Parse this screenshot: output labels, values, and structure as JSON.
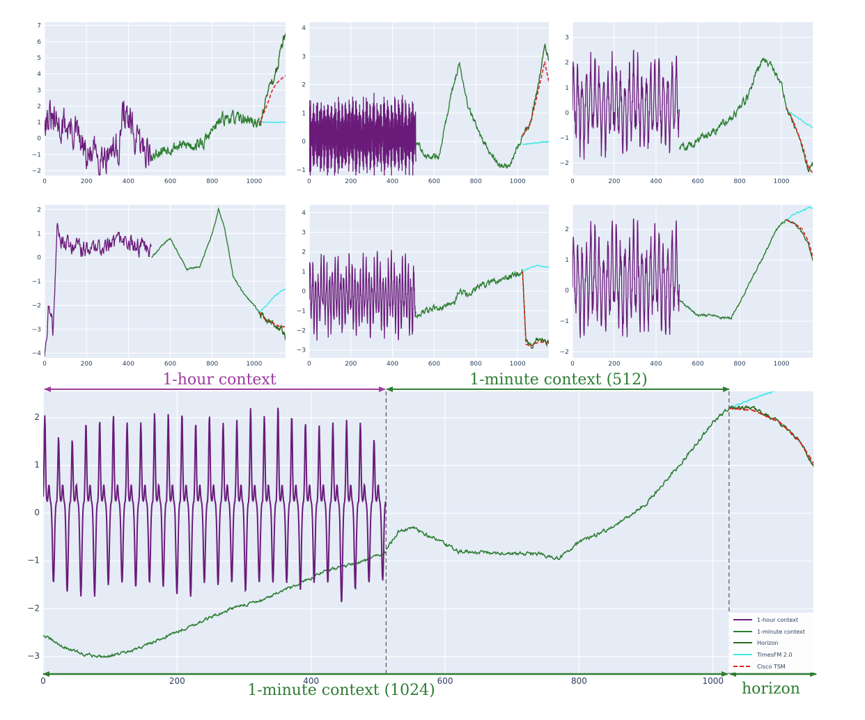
{
  "chart_data": {
    "type": "line",
    "series_styles": {
      "hour_context": {
        "name": "1-hour context",
        "color": "#6a1b7a"
      },
      "minute_context": {
        "name": "1-minute context",
        "color": "#2e7d32"
      },
      "horizon": {
        "name": "Horizon",
        "color": "#2d6a1f"
      },
      "timesfm": {
        "name": "TimesFM 2.0",
        "color": "#3ee8e8"
      },
      "cisco": {
        "name": "Cisco TSM",
        "color": "#e0201b"
      }
    },
    "legend": {
      "position": "bottom-right",
      "entries": [
        "1-hour context",
        "1-minute context",
        "Horizon",
        "TimesFM 2.0",
        "Cisco TSM"
      ]
    },
    "annotations": {
      "hour_context": "1-hour context",
      "minute_context_512": "1-minute context (512)",
      "minute_context_1024": "1-minute context (1024)",
      "horizon": "horizon"
    },
    "small_panels": [
      {
        "xlim": [
          0,
          1150
        ],
        "ylim": [
          -2.3,
          7.2
        ],
        "xticks": [
          0,
          200,
          400,
          600,
          800,
          1000
        ],
        "yticks": [
          -2,
          -1,
          0,
          1,
          2,
          3,
          4,
          5,
          6,
          7
        ],
        "hour": {
          "x_end": 512,
          "amp": 0.9,
          "cycles": 0,
          "kx": [
            0,
            50,
            100,
            150,
            200,
            250,
            300,
            350,
            380,
            410,
            450,
            512
          ],
          "ky": [
            1.6,
            0.7,
            0.8,
            0.3,
            -1.3,
            -0.9,
            -0.8,
            -0.6,
            1.8,
            0.6,
            -0.6,
            -0.6
          ]
        },
        "minute": {
          "x_start": 512,
          "x_end": 1024,
          "amp": 0.3,
          "kx": [
            512,
            560,
            620,
            700,
            760,
            800,
            850,
            880,
            920,
            960,
            1024
          ],
          "ky": [
            -1.0,
            -0.7,
            -0.5,
            -0.4,
            -0.3,
            0.5,
            1.2,
            1.3,
            1.2,
            1.2,
            0.9
          ]
        },
        "horizon": {
          "kx": [
            1024,
            1050,
            1080,
            1100,
            1130,
            1150
          ],
          "ky": [
            0.9,
            2.0,
            3.6,
            3.7,
            5.8,
            6.6
          ],
          "amp": 0.25
        },
        "timesfm": {
          "kx": [
            1024,
            1150
          ],
          "ky": [
            1.0,
            1.0
          ]
        },
        "cisco": {
          "kx": [
            1024,
            1060,
            1090,
            1120,
            1150
          ],
          "ky": [
            0.9,
            2.0,
            3.1,
            3.6,
            3.9
          ]
        }
      },
      {
        "xlim": [
          0,
          1150
        ],
        "ylim": [
          -1.2,
          4.2
        ],
        "xticks": [
          0,
          200,
          400,
          600,
          800,
          1000
        ],
        "yticks": [
          -1,
          0,
          1,
          2,
          3,
          4
        ],
        "hour": {
          "x_end": 512,
          "amp": 1.2,
          "cycles": 180,
          "kx": [
            0,
            512
          ],
          "ky": [
            0.2,
            0.2
          ]
        },
        "minute": {
          "x_start": 512,
          "x_end": 1024,
          "amp": 0.08,
          "kx": [
            512,
            560,
            620,
            680,
            720,
            760,
            820,
            880,
            920,
            960,
            1000,
            1024
          ],
          "ky": [
            0.0,
            -0.5,
            -0.6,
            1.6,
            2.8,
            1.3,
            0.2,
            -0.5,
            -0.9,
            -0.9,
            -0.2,
            0.2
          ]
        },
        "horizon": {
          "kx": [
            1024,
            1060,
            1100,
            1130,
            1150
          ],
          "ky": [
            0.2,
            0.6,
            2.0,
            3.4,
            2.9
          ],
          "amp": 0.08
        },
        "timesfm": {
          "kx": [
            1024,
            1150
          ],
          "ky": [
            -0.1,
            0.0
          ]
        },
        "cisco": {
          "kx": [
            1024,
            1060,
            1100,
            1130,
            1150
          ],
          "ky": [
            0.2,
            0.6,
            1.8,
            2.8,
            2.1
          ]
        }
      },
      {
        "xlim": [
          0,
          1150
        ],
        "ylim": [
          -2.5,
          3.6
        ],
        "xticks": [
          0,
          200,
          400,
          600,
          800,
          1000
        ],
        "yticks": [
          -2,
          -1,
          0,
          1,
          2,
          3
        ],
        "hour": {
          "x_end": 512,
          "amp": 1.7,
          "cycles": 25,
          "kx": [
            0,
            512
          ],
          "ky": [
            0.3,
            0.3
          ]
        },
        "minute": {
          "x_start": 512,
          "x_end": 1024,
          "amp": 0.12,
          "kx": [
            512,
            560,
            620,
            700,
            780,
            840,
            880,
            920,
            960,
            1000,
            1024
          ],
          "ky": [
            -1.4,
            -1.3,
            -1.0,
            -0.6,
            0.0,
            0.6,
            1.7,
            2.2,
            1.8,
            1.1,
            0.2
          ]
        },
        "horizon": {
          "kx": [
            1024,
            1060,
            1100,
            1130,
            1150
          ],
          "ky": [
            0.2,
            -0.5,
            -1.4,
            -2.3,
            -2.0
          ],
          "amp": 0.07
        },
        "timesfm": {
          "kx": [
            1024,
            1150
          ],
          "ky": [
            0.1,
            -0.6
          ]
        },
        "cisco": {
          "kx": [
            1024,
            1060,
            1100,
            1130,
            1150
          ],
          "ky": [
            0.2,
            -0.4,
            -1.3,
            -2.2,
            -2.4
          ]
        }
      },
      {
        "xlim": [
          0,
          1150
        ],
        "ylim": [
          -4.2,
          2.2
        ],
        "xticks": [
          0,
          200,
          400,
          600,
          800,
          1000
        ],
        "yticks": [
          -4,
          -3,
          -2,
          -1,
          0,
          1,
          2
        ],
        "hour": {
          "x_end": 512,
          "amp": 0.3,
          "cycles": 0,
          "kx": [
            0,
            20,
            40,
            60,
            100,
            200,
            300,
            400,
            512
          ],
          "ky": [
            -4.0,
            -2.0,
            -3.0,
            1.2,
            0.5,
            0.3,
            0.5,
            0.6,
            0.3
          ]
        },
        "minute": {
          "x_start": 512,
          "x_end": 1024,
          "amp": 0.03,
          "kx": [
            512,
            560,
            600,
            680,
            740,
            800,
            830,
            860,
            900,
            950,
            1000,
            1024
          ],
          "ky": [
            0.0,
            0.5,
            0.8,
            -0.5,
            -0.4,
            1.0,
            2.0,
            1.2,
            -0.8,
            -1.5,
            -2.0,
            -2.3
          ]
        },
        "horizon": {
          "kx": [
            1024,
            1060,
            1100,
            1130,
            1150
          ],
          "ky": [
            -2.3,
            -2.6,
            -2.8,
            -3.0,
            -3.3
          ],
          "amp": 0.12
        },
        "timesfm": {
          "kx": [
            1024,
            1060,
            1100,
            1130,
            1150
          ],
          "ky": [
            -2.3,
            -2.0,
            -1.6,
            -1.4,
            -1.3
          ]
        },
        "cisco": {
          "kx": [
            1024,
            1060,
            1100,
            1130,
            1150
          ],
          "ky": [
            -2.3,
            -2.6,
            -2.8,
            -2.9,
            -2.9
          ]
        }
      },
      {
        "xlim": [
          0,
          1150
        ],
        "ylim": [
          -3.4,
          4.4
        ],
        "xticks": [
          0,
          200,
          400,
          600,
          800,
          1000
        ],
        "yticks": [
          -3,
          -2,
          -1,
          0,
          1,
          2,
          3,
          4
        ],
        "hour": {
          "x_end": 512,
          "amp": 1.8,
          "cycles": 38,
          "kx": [
            0,
            512
          ],
          "ky": [
            -0.2,
            -0.2
          ]
        },
        "minute": {
          "x_start": 512,
          "x_end": 1024,
          "amp": 0.12,
          "kx": [
            512,
            600,
            700,
            720,
            760,
            800,
            900,
            990,
            1024
          ],
          "ky": [
            -1.2,
            -0.9,
            -0.6,
            0.0,
            -0.2,
            0.2,
            0.5,
            0.8,
            1.0
          ]
        },
        "horizon": {
          "kx": [
            1024,
            1040,
            1060,
            1100,
            1150
          ],
          "ky": [
            1.0,
            -2.5,
            -2.8,
            -2.5,
            -2.6
          ],
          "amp": 0.12
        },
        "timesfm": {
          "kx": [
            1024,
            1060,
            1100,
            1150
          ],
          "ky": [
            1.0,
            1.2,
            1.3,
            1.2
          ]
        },
        "cisco": {
          "kx": [
            1024,
            1040,
            1060,
            1100,
            1150
          ],
          "ky": [
            1.0,
            -2.7,
            -2.8,
            -2.6,
            -2.6
          ]
        }
      },
      {
        "xlim": [
          0,
          1150
        ],
        "ylim": [
          -2.2,
          2.8
        ],
        "xticks": [
          0,
          200,
          400,
          600,
          800,
          1000
        ],
        "yticks": [
          -2,
          -1,
          0,
          1,
          2
        ],
        "hour": {
          "x_end": 512,
          "amp": 1.6,
          "cycles": 25,
          "kx": [
            0,
            512
          ],
          "ky": [
            0.3,
            0.3
          ]
        },
        "minute": {
          "x_start": 512,
          "x_end": 1024,
          "amp": 0.03,
          "kx": [
            512,
            560,
            600,
            660,
            720,
            760,
            800,
            860,
            920,
            970,
            1000,
            1024
          ],
          "ky": [
            -0.3,
            -0.6,
            -0.8,
            -0.8,
            -0.9,
            -0.9,
            -0.4,
            0.4,
            1.2,
            1.9,
            2.2,
            2.3
          ]
        },
        "horizon": {
          "kx": [
            1024,
            1060,
            1100,
            1130,
            1150
          ],
          "ky": [
            2.3,
            2.2,
            1.9,
            1.5,
            1.0
          ],
          "amp": 0.03
        },
        "timesfm": {
          "kx": [
            1024,
            1060,
            1100,
            1130,
            1150
          ],
          "ky": [
            2.3,
            2.5,
            2.6,
            2.7,
            2.7
          ]
        },
        "cisco": {
          "kx": [
            1024,
            1060,
            1100,
            1130,
            1150
          ],
          "ky": [
            2.3,
            2.2,
            2.0,
            1.6,
            1.1
          ]
        }
      }
    ],
    "main_panel": {
      "xlim": [
        0,
        1150
      ],
      "ylim": [
        -3.35,
        2.55
      ],
      "xticks": [
        0,
        200,
        400,
        600,
        800,
        1000
      ],
      "yticks": [
        -3,
        -2,
        -1,
        0,
        1,
        2
      ],
      "hour": {
        "x_end": 512,
        "cycles": 25,
        "peaks": [
          2.05,
          1.6,
          1.55,
          1.9,
          1.95,
          2.05,
          1.9,
          1.9,
          2.1,
          2.1,
          2.1,
          1.9,
          2.05,
          1.9,
          1.95,
          2.2,
          2.05,
          2.25,
          2.05,
          1.9,
          1.85,
          1.9,
          1.95,
          1.9,
          1.55
        ],
        "troughs": [
          -1.55,
          -1.75,
          -1.85,
          -1.85,
          -1.6,
          -1.55,
          -1.65,
          -1.55,
          -1.65,
          -1.8,
          -1.85,
          -1.55,
          -1.6,
          -1.55,
          -1.75,
          -1.55,
          -1.55,
          -1.55,
          -1.7,
          -1.55,
          -1.55,
          -2.0,
          -1.7,
          -1.55,
          -1.5
        ]
      },
      "minute_1024": {
        "x_start": 0,
        "x_end": 512,
        "amp": 0.025,
        "kx": [
          0,
          30,
          60,
          90,
          130,
          180,
          230,
          280,
          330,
          380,
          420,
          450,
          480,
          512
        ],
        "ky": [
          -2.55,
          -2.8,
          -2.95,
          -3.0,
          -2.9,
          -2.6,
          -2.3,
          -2.0,
          -1.8,
          -1.5,
          -1.2,
          -1.1,
          -1.0,
          -0.8
        ]
      },
      "minute_512": {
        "x_start": 512,
        "x_end": 1024,
        "amp": 0.03,
        "kx": [
          512,
          530,
          550,
          580,
          620,
          680,
          740,
          770,
          800,
          850,
          900,
          950,
          1000,
          1024
        ],
        "ky": [
          -0.75,
          -0.4,
          -0.3,
          -0.5,
          -0.8,
          -0.85,
          -0.85,
          -0.95,
          -0.6,
          -0.3,
          0.2,
          1.0,
          1.9,
          2.2
        ]
      },
      "horizon": {
        "kx": [
          1024,
          1060,
          1100,
          1130,
          1150
        ],
        "ky": [
          2.2,
          2.2,
          1.9,
          1.5,
          1.0
        ],
        "amp": 0.03
      },
      "timesfm": {
        "kx": [
          1024,
          1060,
          1100,
          1130,
          1150
        ],
        "ky": [
          2.2,
          2.4,
          2.6,
          2.65,
          2.65
        ]
      },
      "cisco": {
        "kx": [
          1024,
          1060,
          1100,
          1130,
          1150
        ],
        "ky": [
          2.2,
          2.15,
          1.9,
          1.5,
          1.05
        ]
      },
      "vlines": [
        512,
        1024
      ]
    }
  }
}
